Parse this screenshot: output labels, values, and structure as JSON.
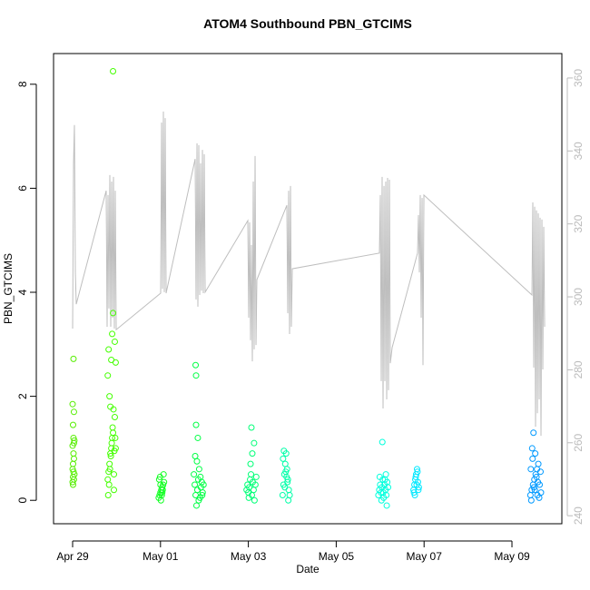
{
  "chart_data": {
    "type": "scatter",
    "title": "ATOM4 Southbound PBN_GTCIMS",
    "x_label": "Date",
    "y_label": "PBN_GTCIMS",
    "xlim": [
      -0.434,
      11.136
    ],
    "xticks": [
      {
        "value": 0,
        "label": "Apr 29"
      },
      {
        "value": 2,
        "label": "May 01"
      },
      {
        "value": 4,
        "label": "May 03"
      },
      {
        "value": 6,
        "label": "May 05"
      },
      {
        "value": 8,
        "label": "May 07"
      },
      {
        "value": 10,
        "label": "May 09"
      }
    ],
    "ylim": [
      -0.45,
      8.59
    ],
    "yticks": [
      0,
      2,
      4,
      6,
      8
    ],
    "y2lim": [
      237.8,
      366.7
    ],
    "y2ticks": [
      240,
      260,
      280,
      300,
      320,
      340,
      360
    ],
    "series": [
      {
        "type": "line",
        "axis": "y2",
        "color": "#bebebe",
        "x": [
          0,
          0.021,
          0.041,
          0.062,
          0.083,
          0.764,
          0.785,
          0.806,
          0.826,
          0.847,
          0.868,
          0.888,
          0.909,
          0.93,
          0.95,
          0.971,
          0.992,
          2.004,
          2.025,
          2.045,
          2.066,
          2.087,
          2.107,
          2.128,
          2.789,
          2.81,
          2.831,
          2.851,
          2.872,
          2.893,
          2.913,
          2.934,
          2.955,
          2.975,
          2.996,
          3.017,
          3.988,
          4.008,
          4.029,
          4.05,
          4.07,
          4.091,
          4.112,
          4.132,
          4.153,
          4.174,
          4.194,
          4.876,
          4.897,
          4.917,
          4.938,
          4.959,
          4.979,
          5.0,
          6.983,
          7.004,
          7.025,
          7.045,
          7.066,
          7.087,
          7.107,
          7.128,
          7.149,
          7.169,
          7.19,
          7.211,
          7.231,
          7.273,
          7.851,
          7.872,
          7.893,
          7.913,
          7.934,
          7.955,
          7.975,
          7.996,
          10.455,
          10.475,
          10.496,
          10.517,
          10.537,
          10.558,
          10.579,
          10.599,
          10.62,
          10.64,
          10.661,
          10.682,
          10.702,
          10.723,
          10.744
        ],
        "values": [
          291.3,
          336.6,
          347.1,
          306.7,
          298.0,
          329.1,
          291.8,
          327.9,
          296.8,
          333.4,
          291.8,
          331.6,
          294.3,
          332.9,
          291.3,
          329.1,
          291.0,
          301.0,
          347.8,
          302.2,
          350.8,
          301.3,
          349.0,
          301.0,
          337.8,
          299.3,
          342.1,
          297.3,
          341.6,
          300.5,
          336.6,
          301.7,
          340.3,
          301.0,
          339.1,
          301.3,
          320.9,
          294.3,
          320.4,
          288.1,
          314.2,
          282.3,
          331.6,
          285.6,
          338.6,
          286.8,
          304.7,
          325.1,
          295.5,
          329.1,
          289.8,
          330.4,
          291.8,
          307.7,
          312.0,
          327.9,
          276.9,
          332.9,
          269.4,
          330.4,
          276.9,
          331.6,
          271.9,
          332.6,
          274.4,
          332.1,
          281.8,
          286.1,
          312.0,
          322.4,
          306.7,
          327.9,
          294.3,
          327.1,
          281.3,
          327.9,
          300.5,
          325.9,
          280.6,
          324.7,
          264.4,
          323.7,
          268.1,
          322.9,
          271.9,
          321.7,
          261.9,
          321.2,
          280.1,
          319.2,
          291.8
        ]
      },
      {
        "color": "#55ee00",
        "x": [
          0,
          0.01,
          0.02,
          0.03,
          0.0,
          0.01,
          0.02,
          0.03,
          0.04,
          0.0,
          0.02,
          0.01,
          0.03,
          0.0,
          0.02,
          0.04,
          0.01,
          0.03
        ],
        "values": [
          0.35,
          0.45,
          0.55,
          0.4,
          0.6,
          0.7,
          0.9,
          1.1,
          1.15,
          1.05,
          1.2,
          1.45,
          1.7,
          1.85,
          2.72,
          0.5,
          0.3,
          0.8
        ]
      },
      {
        "color": "#44ff00",
        "x": [
          0.8,
          0.82,
          0.84,
          0.86,
          0.88,
          0.9,
          0.92,
          0.94,
          0.96,
          0.98,
          0.81,
          0.83,
          0.85,
          0.87,
          0.89,
          0.91,
          0.93,
          0.95,
          0.97,
          0.8,
          0.84,
          0.88,
          0.92,
          0.96,
          0.86,
          0.9,
          0.94,
          0.82,
          0.98,
          0.92
        ],
        "values": [
          0.4,
          0.55,
          0.7,
          0.9,
          1.0,
          1.2,
          1.3,
          0.5,
          1.6,
          1.0,
          0.1,
          0.3,
          0.6,
          0.85,
          1.1,
          1.4,
          1.75,
          0.95,
          1.2,
          2.4,
          2.0,
          2.7,
          3.6,
          3.05,
          1.8,
          3.2,
          0.2,
          2.9,
          2.65,
          8.25
        ]
      },
      {
        "color": "#11ff22",
        "x": [
          1.96,
          1.98,
          2.0,
          2.02,
          2.04,
          2.06,
          2.08,
          1.97,
          1.99,
          2.01,
          2.03,
          2.05,
          2.07,
          2.0,
          2.04
        ],
        "values": [
          0.05,
          0.1,
          0.15,
          0.2,
          0.25,
          0.3,
          0.35,
          0.4,
          0.45,
          0.0,
          0.1,
          0.2,
          0.5,
          0.3,
          0.15
        ]
      },
      {
        "color": "#00ff44",
        "x": [
          2.76,
          2.78,
          2.8,
          2.82,
          2.84,
          2.86,
          2.88,
          2.9,
          2.92,
          2.94,
          2.96,
          2.98,
          2.79,
          2.83,
          2.87,
          2.91,
          2.95,
          2.81,
          2.85,
          2.8,
          2.81
        ],
        "values": [
          0.5,
          0.3,
          0.1,
          -0.1,
          0.2,
          0.4,
          0.6,
          0.05,
          0.25,
          0.35,
          0.15,
          0.3,
          0.85,
          0.75,
          0.0,
          0.45,
          0.1,
          1.45,
          1.2,
          2.6,
          2.4
        ]
      },
      {
        "color": "#00ff77",
        "x": [
          3.96,
          3.98,
          4.0,
          4.02,
          4.04,
          4.06,
          4.08,
          4.1,
          4.12,
          4.14,
          4.16,
          4.18,
          4.05,
          4.09,
          4.07,
          4.13,
          4.01
        ],
        "values": [
          0.2,
          0.3,
          0.15,
          0.25,
          0.4,
          0.5,
          0.1,
          0.35,
          0.2,
          0.0,
          0.3,
          0.45,
          0.7,
          0.9,
          1.4,
          1.1,
          0.05
        ]
      },
      {
        "color": "#00ffa8",
        "x": [
          4.78,
          4.8,
          4.82,
          4.84,
          4.86,
          4.88,
          4.9,
          4.92,
          4.94,
          4.79,
          4.83,
          4.87,
          4.91,
          4.81,
          4.85,
          4.89
        ],
        "values": [
          0.1,
          0.3,
          0.5,
          0.7,
          0.9,
          0.6,
          0.4,
          0.2,
          0.1,
          0.8,
          0.25,
          0.45,
          0.0,
          0.95,
          0.55,
          0.35
        ]
      },
      {
        "color": "#00ffdd",
        "x": [
          6.96,
          6.98,
          7.0,
          7.02,
          7.04,
          7.06,
          7.08,
          7.1,
          7.12,
          7.14,
          7.16,
          7.18,
          6.99,
          7.03,
          7.07,
          7.11,
          7.15,
          7.05,
          7.13
        ],
        "values": [
          0.1,
          0.2,
          0.3,
          0.15,
          0.25,
          0.4,
          0.05,
          0.3,
          0.2,
          0.1,
          0.35,
          0.25,
          0.45,
          0.0,
          0.15,
          0.4,
          -0.1,
          1.12,
          0.5
        ]
      },
      {
        "color": "#00e8ff",
        "x": [
          7.76,
          7.78,
          7.8,
          7.82,
          7.84,
          7.86,
          7.88,
          7.77,
          7.81,
          7.85,
          7.79,
          7.83,
          7.87
        ],
        "values": [
          0.2,
          0.3,
          0.4,
          0.5,
          0.6,
          0.35,
          0.25,
          0.15,
          0.45,
          0.55,
          0.1,
          0.3,
          0.2
        ]
      },
      {
        "color": "#0099ff",
        "x": [
          10.42,
          10.45,
          10.48,
          10.51,
          10.54,
          10.57,
          10.6,
          10.63,
          10.66,
          10.44,
          10.5,
          10.56,
          10.62,
          10.47,
          10.53,
          10.59,
          10.65,
          10.46,
          10.52,
          10.58,
          10.49,
          10.43
        ],
        "values": [
          0.1,
          0.2,
          0.3,
          0.4,
          0.5,
          0.6,
          0.7,
          0.3,
          0.15,
          0.0,
          0.25,
          0.45,
          0.05,
          0.8,
          0.9,
          0.35,
          0.55,
          1.0,
          0.2,
          0.1,
          1.3,
          0.6
        ]
      }
    ]
  }
}
